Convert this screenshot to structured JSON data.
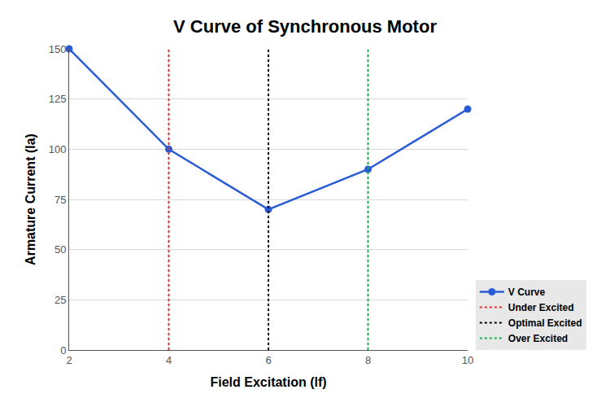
{
  "chart_data": {
    "type": "line",
    "title": "V Curve of Synchronous Motor",
    "x_label": "Field Excitation (lf)",
    "y_label": "Armature Current (la)",
    "xlim": [
      2,
      10
    ],
    "xticks": [
      2,
      4,
      6,
      8,
      10
    ],
    "ylim": [
      0,
      150
    ],
    "yticks": [
      0,
      25,
      50,
      75,
      100,
      125,
      150
    ],
    "grid": true,
    "legend": "lower right",
    "series": [
      {
        "name": "V Curve",
        "color": "#2a5bd7",
        "type": "line",
        "marker": "circle",
        "line_style": "solid",
        "x": [
          2,
          4,
          6,
          8,
          10
        ],
        "values": [
          150,
          100,
          70,
          90,
          120
        ]
      },
      {
        "name": "Under Excited",
        "color": "#e0302a",
        "type": "line",
        "line_style": "dotted",
        "x": [
          4,
          4
        ],
        "values": [
          0,
          150
        ]
      },
      {
        "name": "Optimal Excited",
        "color": "#000000",
        "type": "line",
        "line_style": "dotted",
        "x": [
          6,
          6
        ],
        "values": [
          0,
          150
        ]
      },
      {
        "name": "Over Excited",
        "color": "#1faa4a",
        "type": "line",
        "line_style": "dotted",
        "x": [
          8,
          8
        ],
        "values": [
          0,
          150
        ]
      }
    ]
  }
}
